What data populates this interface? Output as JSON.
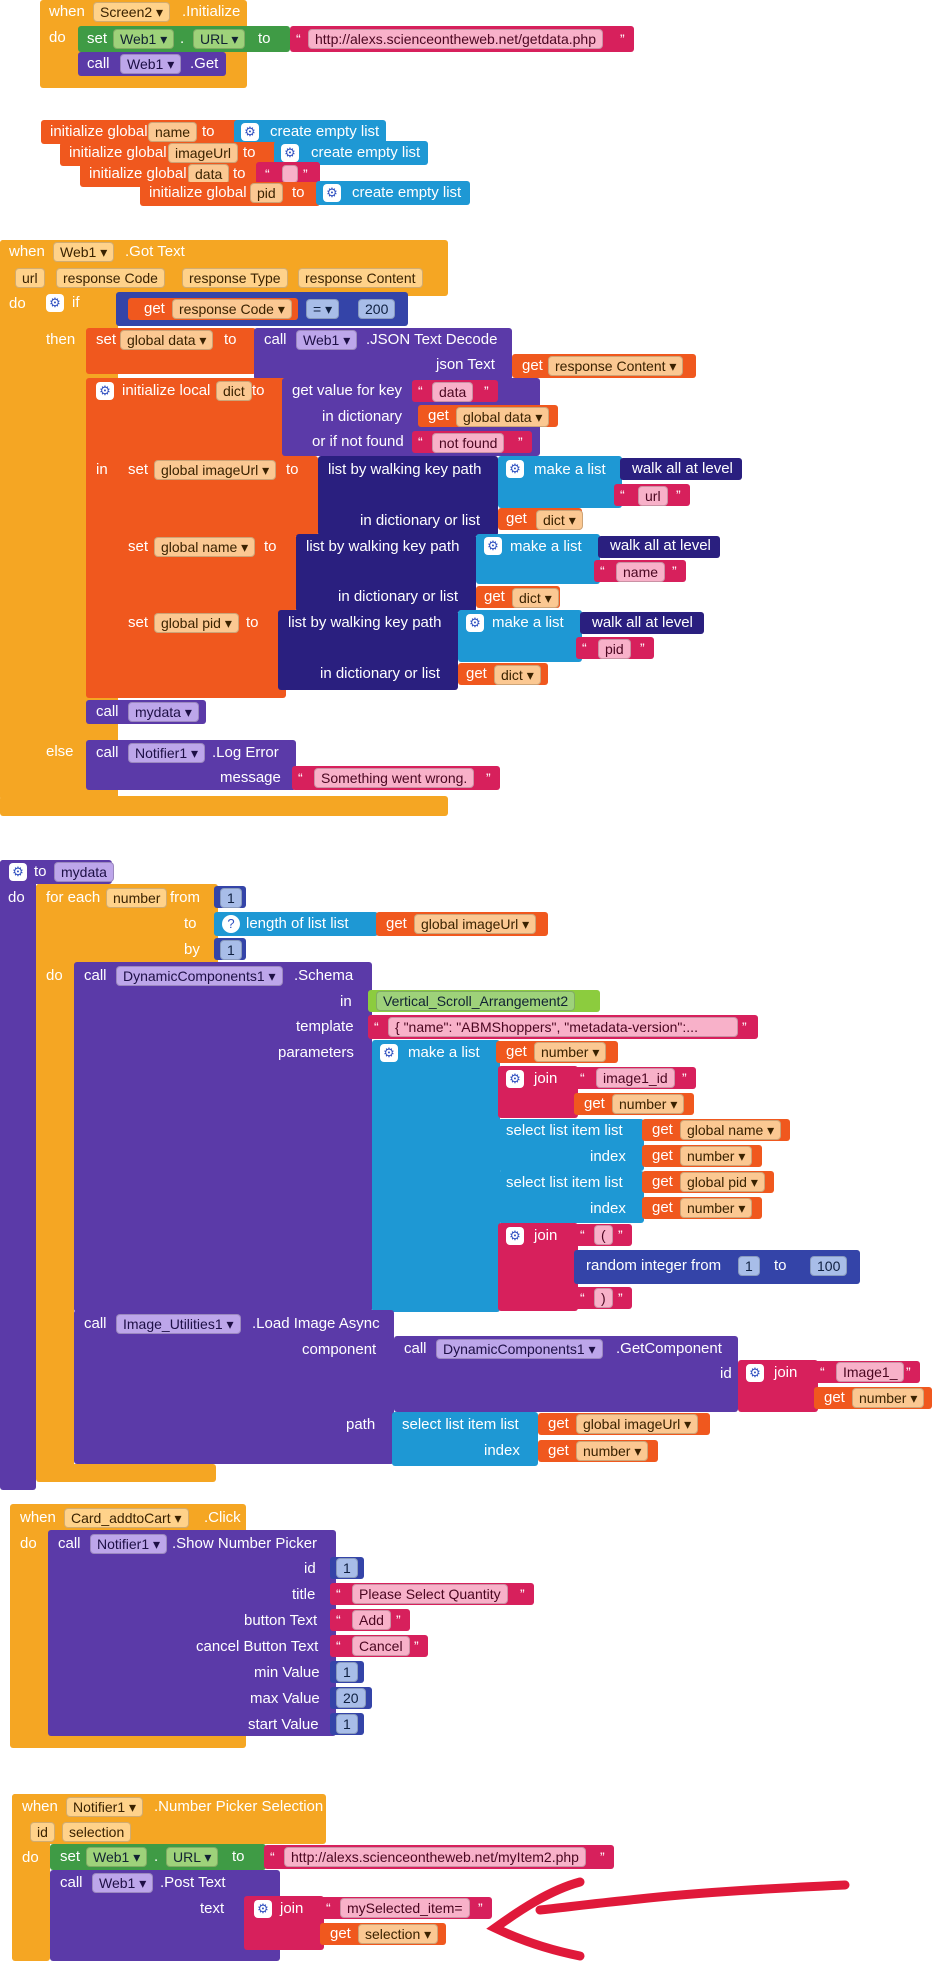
{
  "common": {
    "when": "when",
    "do": "do",
    "set": "set",
    "call": "call",
    "to": "to",
    "get": "get",
    "in": "in",
    "then": "then",
    "else": "else",
    "if": "if",
    "from": "from",
    "by": "by",
    "join": "join",
    "eq": "=",
    "dot": ".",
    "dropdown": "▾",
    "q": "“",
    "qr": "”"
  },
  "b1": {
    "comp": "Screen2",
    "event": ".Initialize",
    "web": "Web1",
    "prop": "URL",
    "url": "http://alexs.scienceontheweb.net/getdata.php",
    "call_comp": "Web1",
    "method": ".Get"
  },
  "globals": {
    "init": "initialize global",
    "create": "create empty list",
    "g1": "name",
    "g2": "imageUrl",
    "g3": "data",
    "g4": "pid",
    "empty": ""
  },
  "b2": {
    "comp": "Web1",
    "event": ".Got Text",
    "p1": "url",
    "p2": "response Code",
    "p3": "response Type",
    "p4": "response Content",
    "resp_code": "response Code",
    "num200": "200",
    "set_var": "global data",
    "call_comp": "Web1",
    "method": ".JSON Text Decode",
    "json_label": "json Text",
    "json_arg": "response Content",
    "init_local": "initialize local",
    "dict": "dict",
    "get_value": "get value for key",
    "key_data": "data",
    "in_dict": "in dictionary",
    "get_global_data": "global data",
    "or_not_found": "or if not found",
    "not_found": "not found",
    "set_imageurl": "global imageUrl",
    "walk": "list by walking key path",
    "make_list": "make a list",
    "walk_all": "walk all at level",
    "url_key": "url",
    "in_dict_or_list": "in dictionary or list",
    "set_name": "global name",
    "name_key": "name",
    "set_pid": "global pid",
    "pid_key": "pid",
    "call_mydata": "mydata",
    "notifier": "Notifier1",
    "log_error": ".Log Error",
    "message": "message",
    "msg_text": "Something went wrong."
  },
  "b3": {
    "to_label": "to",
    "proc": "mydata",
    "foreach": "for each",
    "var": "number",
    "from_val": "1",
    "length": "length of list  list",
    "global_imageurl": "global imageUrl",
    "by_val": "1",
    "dyn": "DynamicComponents1",
    "schema": ".Schema",
    "in_label": "in",
    "arrangement": "Vertical_Scroll_Arrangement2",
    "template": "template",
    "tmpl_text": "{  \"name\": \"ABMShoppers\",  \"metadata-version\":...",
    "parameters": "parameters",
    "make_list": "make a list",
    "number": "number",
    "image1_id": "image1_id",
    "select_item": "select list item  list",
    "global_name": "global name",
    "index": "index",
    "global_pid": "global pid",
    "paren_open": "(",
    "random": "random integer from",
    "r_from": "1",
    "r_to": "100",
    "paren_close": ")",
    "img_util": "Image_Utilities1",
    "load_async": ".Load Image Async",
    "component": "component",
    "get_component": ".GetComponent",
    "id_label": "id",
    "image1": "Image1_",
    "path": "path"
  },
  "b4": {
    "comp": "Card_addtoCart",
    "event": ".Click",
    "notifier": "Notifier1",
    "method": ".Show Number Picker",
    "id": "id",
    "id_val": "1",
    "title": "title",
    "title_val": "Please Select Quantity",
    "button_text": "button Text",
    "button_val": "Add",
    "cancel_text": "cancel Button Text",
    "cancel_val": "Cancel",
    "min": "min Value",
    "min_val": "1",
    "max": "max Value",
    "max_val": "20",
    "start": "start Value",
    "start_val": "1"
  },
  "b5": {
    "comp": "Notifier1",
    "event": ".Number Picker Selection",
    "p1": "id",
    "p2": "selection",
    "web": "Web1",
    "prop": "URL",
    "url": "http://alexs.scienceontheweb.net/myItem2.php",
    "call_comp": "Web1",
    "method": ".Post Text",
    "text_label": "text",
    "join_text": "mySelected_item=",
    "selection": "selection"
  },
  "colors": {
    "event": "#f5a623",
    "procedure": "#5b3aa8",
    "variable": "#f0581e",
    "text": "#d7205c",
    "list": "#1e98d4",
    "annotation": "#e0193a"
  }
}
